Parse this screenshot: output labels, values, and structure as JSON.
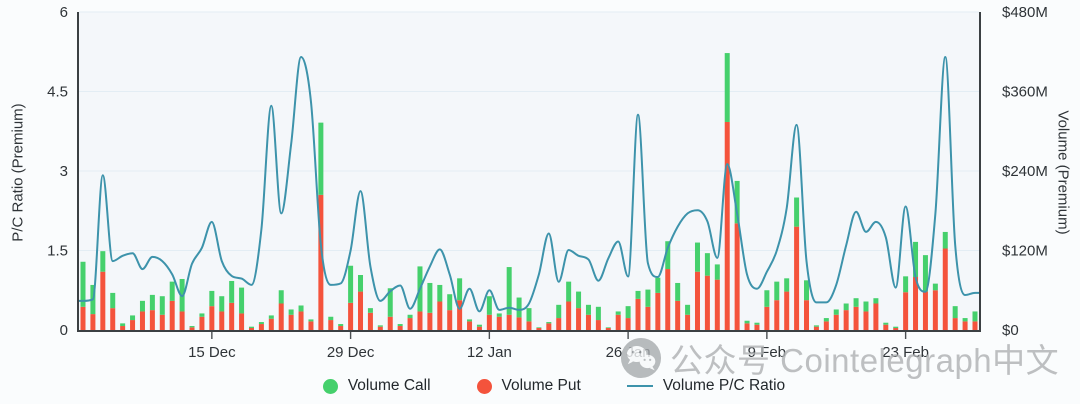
{
  "chart": {
    "left_axis": {
      "title": "P/C Ratio (Premium)",
      "ticks": [
        "0",
        "1.5",
        "3",
        "4.5",
        "6"
      ],
      "tick_values": [
        0,
        1.5,
        3,
        4.5,
        6
      ],
      "range": [
        0,
        6
      ]
    },
    "right_axis": {
      "title": "Volume (Premium)",
      "ticks": [
        "$0",
        "$120M",
        "$240M",
        "$360M",
        "$480M"
      ],
      "tick_values": [
        0,
        120,
        240,
        360,
        480
      ],
      "range": [
        0,
        480
      ]
    },
    "x_axis": {
      "tick_labels": [
        "15 Dec",
        "29 Dec",
        "12 Jan",
        "26 Jan",
        "9 Feb",
        "23 Feb"
      ],
      "tick_indices": [
        13,
        27,
        41,
        55,
        69,
        83
      ]
    },
    "legend": [
      {
        "label": "Volume Call",
        "type": "dot",
        "color": "#45d06c"
      },
      {
        "label": "Volume Put",
        "type": "dot",
        "color": "#f4533c"
      },
      {
        "label": "Volume P/C Ratio",
        "type": "line",
        "color": "#3d93ab"
      }
    ]
  },
  "chart_data": {
    "type": "bar",
    "subtype": "stacked-bars-with-line",
    "x_count": 91,
    "x_start_label": "2 Dec",
    "x_tick_labels": [
      "15 Dec",
      "29 Dec",
      "12 Jan",
      "26 Jan",
      "9 Feb",
      "23 Feb"
    ],
    "x_tick_indices": [
      13,
      27,
      41,
      55,
      69,
      83
    ],
    "bar_unit": "USD millions (right axis, $0-$480M)",
    "line_unit": "ratio (left axis, 0-6)",
    "grid": "horizontal lines at 1.5, 3, 4.5, 6",
    "legend_position": "bottom-center",
    "series": [
      {
        "name": "Volume Put",
        "type": "bar",
        "stack": "volume",
        "axis": "right",
        "color": "#f4533c",
        "values": [
          35,
          24,
          88,
          33,
          6,
          15,
          28,
          30,
          23,
          44,
          28,
          4,
          20,
          36,
          28,
          41,
          25,
          3,
          9,
          17,
          40,
          23,
          28,
          13,
          204,
          15,
          6,
          41,
          58,
          26,
          5,
          20,
          6,
          18,
          28,
          26,
          43,
          30,
          45,
          13,
          5,
          23,
          20,
          23,
          19,
          13,
          3,
          10,
          18,
          43,
          33,
          23,
          15,
          3,
          23,
          18,
          47,
          35,
          56,
          92,
          44,
          23,
          88,
          82,
          76,
          314,
          161,
          10,
          8,
          35,
          45,
          58,
          156,
          45,
          5,
          13,
          23,
          30,
          35,
          28,
          40,
          8,
          3,
          57,
          80,
          58,
          60,
          123,
          18,
          13,
          13
        ]
      },
      {
        "name": "Volume Call",
        "type": "bar",
        "stack": "volume",
        "axis": "right",
        "color": "#45d06c",
        "values": [
          68,
          44,
          31,
          23,
          4,
          7,
          16,
          23,
          28,
          29,
          49,
          2,
          5,
          23,
          23,
          33,
          39,
          2,
          3,
          5,
          20,
          8,
          9,
          3,
          109,
          5,
          3,
          56,
          25,
          7,
          2,
          43,
          3,
          5,
          68,
          45,
          25,
          24,
          33,
          3,
          3,
          28,
          5,
          72,
          30,
          20,
          1,
          2,
          20,
          30,
          25,
          15,
          20,
          1,
          5,
          18,
          12,
          26,
          23,
          42,
          27,
          15,
          44,
          34,
          23,
          104,
          64,
          4,
          3,
          25,
          28,
          20,
          44,
          30,
          2,
          5,
          8,
          10,
          13,
          15,
          8,
          3,
          2,
          24,
          53,
          55,
          10,
          25,
          18,
          5,
          15
        ]
      },
      {
        "name": "Volume P/C Ratio",
        "type": "line",
        "axis": "left",
        "color": "#3d93ab",
        "values": [
          0.55,
          0.58,
          2.92,
          1.3,
          1.4,
          1.45,
          1.15,
          1.38,
          1.3,
          1.05,
          0.64,
          1.25,
          1.55,
          2.04,
          1.3,
          1.02,
          0.97,
          0.85,
          1.9,
          4.23,
          2.2,
          3.5,
          5.15,
          4.3,
          1.6,
          0.85,
          0.88,
          1.5,
          2.62,
          1.2,
          0.55,
          0.73,
          0.84,
          0.4,
          0.78,
          1.2,
          1.52,
          1.05,
          0.4,
          0.78,
          0.35,
          0.75,
          0.38,
          0.42,
          0.38,
          0.5,
          1.05,
          1.82,
          0.91,
          1.51,
          1.4,
          1.33,
          0.93,
          1.35,
          1.67,
          1.01,
          4.06,
          1.26,
          1.0,
          1.55,
          1.95,
          2.2,
          2.26,
          2.05,
          1.36,
          3.13,
          2.2,
          1.05,
          0.78,
          1.1,
          1.5,
          2.3,
          3.87,
          1.3,
          0.52,
          0.52,
          0.85,
          1.6,
          2.23,
          1.85,
          2.04,
          1.75,
          0.8,
          2.33,
          1.0,
          0.72,
          2.2,
          5.15,
          1.6,
          0.66,
          0.7
        ]
      }
    ],
    "left_axis_range": [
      0,
      6
    ],
    "right_axis_range": [
      0,
      480
    ]
  },
  "watermark": {
    "icon": "wechat-icon",
    "text": "公众号 Cointelegraph中文"
  },
  "colors": {
    "call_green": "#45d06c",
    "put_red": "#f4533c",
    "ratio_line_teal": "#3d93ab",
    "axis_line": "#3b4043",
    "tick_text": "#2f3438",
    "gridline": "#e3edf4",
    "plot_background": "#f4f7fa",
    "page_background": "#fafcfd",
    "watermark_gray": "#aeb1b3"
  }
}
